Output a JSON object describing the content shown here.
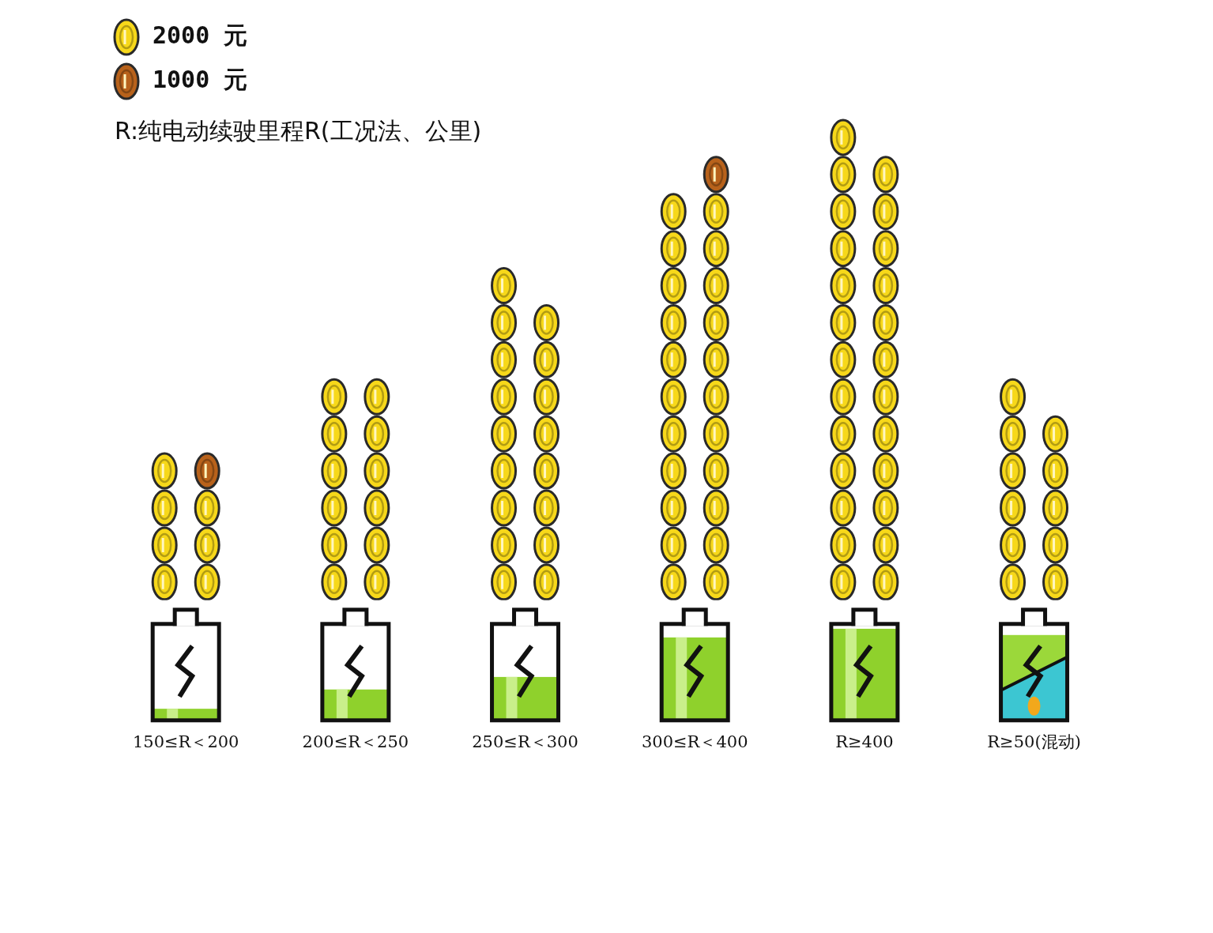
{
  "chart_data": {
    "type": "bar",
    "annotation": "R:纯电动续驶里程R(工况法、公里)",
    "coins": [
      {
        "label": "2000 元",
        "value": 2000,
        "color": "#f7d81a"
      },
      {
        "label": "1000 元",
        "value": 1000,
        "color": "#b8621b"
      }
    ],
    "categories": [
      "150≤R＜200",
      "200≤R＜250",
      "250≤R＜300",
      "300≤R＜400",
      "R≥400",
      "R≥50(混动)"
    ],
    "values": [
      15000,
      24000,
      34000,
      45000,
      50000,
      22000
    ],
    "ylim": [
      0,
      52000
    ],
    "grid": false,
    "tick_labels": "x"
  }
}
